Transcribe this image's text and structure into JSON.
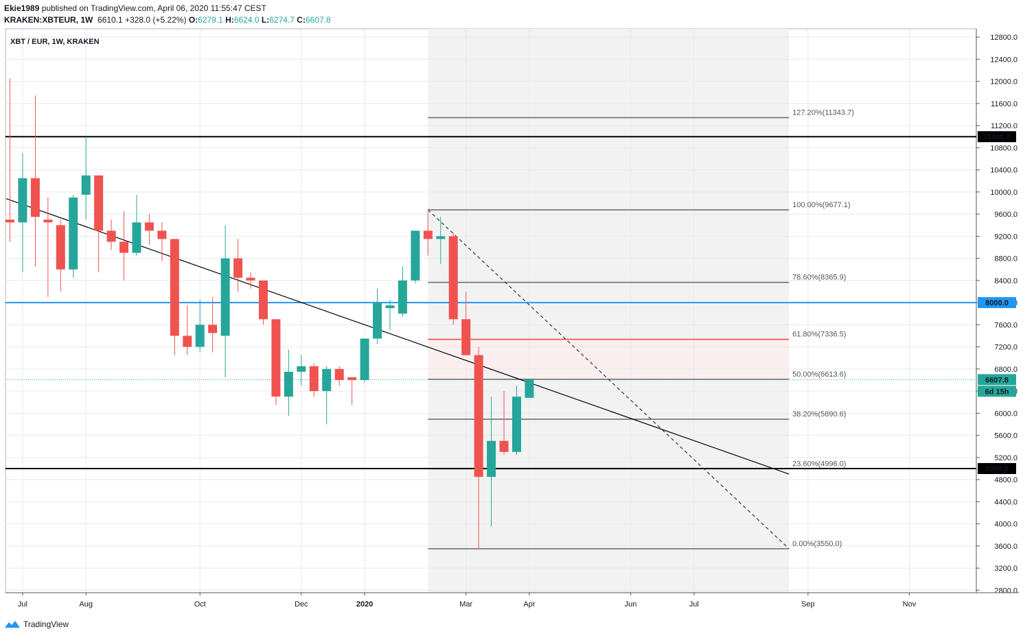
{
  "header": {
    "line1": {
      "user": "Ekie1989",
      "text": " published on TradingView.com, April 06, 2020 11:55:47 CEST"
    },
    "line2": {
      "symbol": "KRAKEN:XBTEUR, 1W",
      "last": "6610.1",
      "change": "+328.0 (+5.22%)",
      "o_label": "O:",
      "o": "6279.1",
      "h_label": "H:",
      "h": "6624.0",
      "l_label": "L:",
      "l": "6274.7",
      "c_label": "C:",
      "c": "6607.8"
    }
  },
  "footer": {
    "brand": "TradingView"
  },
  "colors": {
    "up": "#26a69a",
    "down": "#ef5350",
    "blue_line": "#2196f3",
    "fib_red": "#f44336"
  },
  "chart_data": {
    "type": "candlestick",
    "legend": "XBT / EUR, 1W, KRAKEN",
    "ylim": [
      2700,
      13300
    ],
    "y_ticks": [
      2800,
      3200,
      3600,
      4000,
      4400,
      4800,
      5200,
      5600,
      6000,
      6400,
      6800,
      7200,
      7600,
      8000,
      8400,
      8800,
      9200,
      9600,
      10000,
      10400,
      10800,
      11200,
      11600,
      12000,
      12400,
      12800
    ],
    "x_labels": [
      {
        "text": "Jul",
        "i": 1
      },
      {
        "text": "Aug",
        "i": 6
      },
      {
        "text": "Oct",
        "i": 15
      },
      {
        "text": "Dec",
        "i": 23
      },
      {
        "text": "2020",
        "i": 28
      },
      {
        "text": "Mar",
        "i": 36
      },
      {
        "text": "Apr",
        "i": 41
      },
      {
        "text": "Jun",
        "i": 49
      },
      {
        "text": "Jul",
        "i": 54
      },
      {
        "text": "Sep",
        "i": 63
      },
      {
        "text": "Nov",
        "i": 71
      }
    ],
    "candles": [
      [
        9500,
        12050,
        9100,
        9450
      ],
      [
        9450,
        10700,
        8550,
        10250
      ],
      [
        10250,
        11750,
        8650,
        9550
      ],
      [
        9500,
        9900,
        8100,
        9450
      ],
      [
        9400,
        9500,
        8200,
        8600
      ],
      [
        8600,
        9950,
        8450,
        9900
      ],
      [
        9950,
        11000,
        9500,
        10300
      ],
      [
        10300,
        10300,
        8550,
        9300
      ],
      [
        9300,
        9500,
        8950,
        9100
      ],
      [
        9100,
        9650,
        8400,
        8900
      ],
      [
        8900,
        9950,
        8850,
        9450
      ],
      [
        9450,
        9600,
        9050,
        9300
      ],
      [
        9300,
        9450,
        8750,
        9150
      ],
      [
        9150,
        9150,
        7050,
        7400
      ],
      [
        7400,
        7950,
        7050,
        7200
      ],
      [
        7200,
        8050,
        7100,
        7600
      ],
      [
        7600,
        8100,
        7100,
        7450
      ],
      [
        7400,
        9400,
        6650,
        8800
      ],
      [
        8800,
        9150,
        8200,
        8450
      ],
      [
        8450,
        8550,
        8250,
        8400
      ],
      [
        8400,
        8400,
        7600,
        7700
      ],
      [
        7700,
        7700,
        6150,
        6300
      ],
      [
        6300,
        7150,
        5950,
        6750
      ],
      [
        6750,
        7050,
        6500,
        6850
      ],
      [
        6850,
        6900,
        6300,
        6400
      ],
      [
        6400,
        6850,
        5800,
        6800
      ],
      [
        6800,
        6850,
        6500,
        6600
      ],
      [
        6650,
        6650,
        6150,
        6600
      ],
      [
        6600,
        7350,
        6550,
        7350
      ],
      [
        7350,
        8250,
        7250,
        8000
      ],
      [
        7900,
        8050,
        7500,
        7950
      ],
      [
        7800,
        8650,
        7750,
        8400
      ],
      [
        8400,
        9300,
        8350,
        9300
      ],
      [
        9300,
        9650,
        8850,
        9150
      ],
      [
        9150,
        9550,
        8700,
        9200
      ],
      [
        9200,
        9250,
        7600,
        7700
      ],
      [
        7700,
        8200,
        7050,
        7050
      ],
      [
        7050,
        7200,
        3550,
        4850
      ],
      [
        4850,
        6300,
        3950,
        5500
      ],
      [
        5500,
        6400,
        5250,
        5300
      ],
      [
        5300,
        6500,
        5250,
        6300
      ],
      [
        6279.1,
        6624.0,
        6274.7,
        6607.8
      ]
    ],
    "fib_levels": [
      {
        "label": "127.20%(11343.7)",
        "value": 11343.7
      },
      {
        "label": "100.00%(9677.1)",
        "value": 9677.1
      },
      {
        "label": "78.60%(8365.9)",
        "value": 8365.9
      },
      {
        "label": "61.80%(7336.5)",
        "value": 7336.5
      },
      {
        "label": "50.00%(6613.6)",
        "value": 6613.6
      },
      {
        "label": "38.20%(5890.6)",
        "value": 5890.6
      },
      {
        "label": "23.60%(4996.0)",
        "value": 4996.0
      },
      {
        "label": "0.00%(3550.0)",
        "value": 3550.0
      }
    ],
    "fib_range": {
      "start_i": 33,
      "end_i": 61.5
    },
    "horizontal_lines": [
      {
        "value": 11000,
        "label": "11000.0",
        "color": "#000000"
      },
      {
        "value": 8000,
        "label": "8000.0",
        "color": "#2196f3"
      },
      {
        "value": 5000,
        "label": "5000.0",
        "color": "#000000"
      }
    ],
    "current_price": {
      "value": 6607.8,
      "label": "6607.8",
      "countdown": "6d 15h"
    },
    "trendline": {
      "i1": -0.3,
      "v1": 9880,
      "i2": 61.5,
      "v2": 4900
    },
    "dashed_line": {
      "i1": 33,
      "v1": 9677.1,
      "i2": 61.5,
      "v2": 3550
    }
  }
}
